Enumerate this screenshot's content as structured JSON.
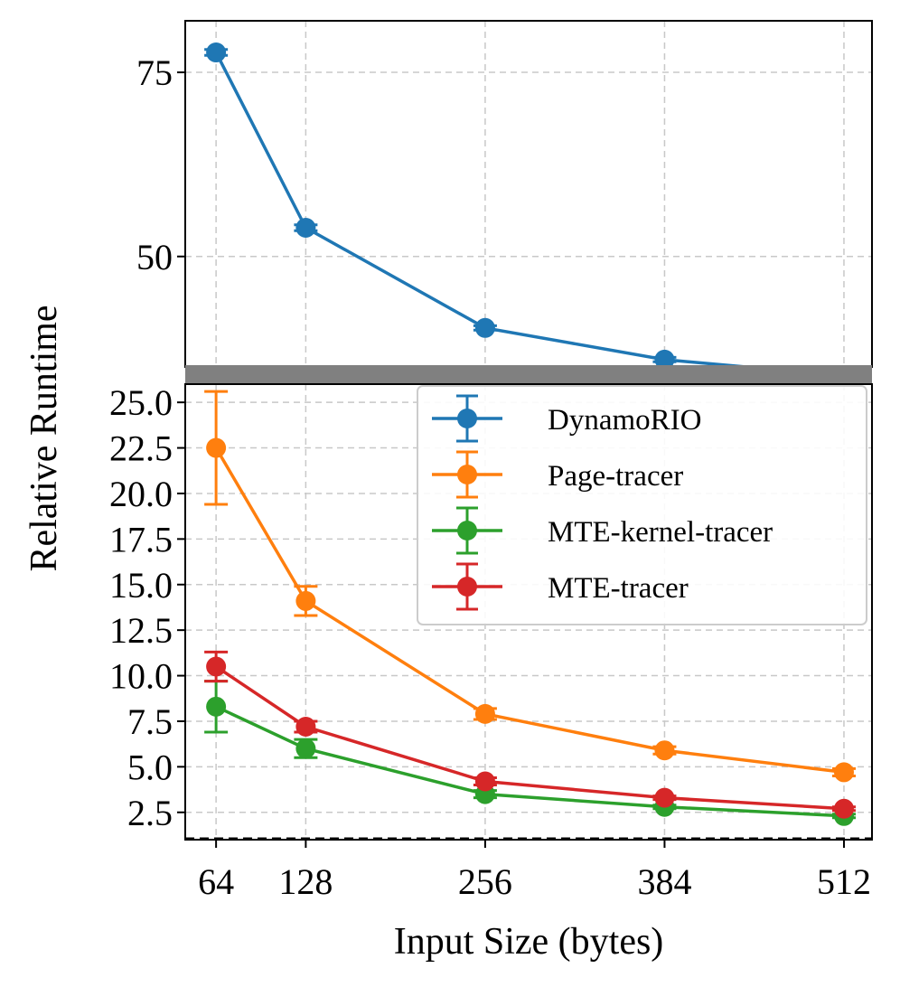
{
  "chart_data": {
    "type": "line",
    "xlabel": "Input Size (bytes)",
    "ylabel": "Relative Runtime",
    "x": [
      64,
      128,
      256,
      384,
      512
    ],
    "xticks": [
      "64",
      "128",
      "256",
      "384",
      "512"
    ],
    "xlim": [
      42,
      532
    ],
    "broken_axis": true,
    "grid": true,
    "legend_position": "upper right",
    "top_panel": {
      "ylim": [
        35,
        82
      ],
      "yticks": [
        "50",
        "75"
      ],
      "series": [
        "DynamoRIO"
      ]
    },
    "bottom_panel": {
      "ylim": [
        1.0,
        26.0
      ],
      "yticks": [
        "2.5",
        "5.0",
        "7.5",
        "10.0",
        "12.5",
        "15.0",
        "17.5",
        "20.0",
        "22.5",
        "25.0"
      ],
      "series": [
        "Page-tracer",
        "MTE-kernel-tracer",
        "MTE-tracer"
      ]
    },
    "series": [
      {
        "name": "DynamoRIO",
        "color": "#1f77b4",
        "values": [
          77.7,
          53.9,
          40.3,
          36.0,
          33.8
        ],
        "err": [
          0.4,
          0.4,
          0.3,
          0.3,
          0.3
        ]
      },
      {
        "name": "Page-tracer",
        "color": "#ff7f0e",
        "values": [
          22.5,
          14.1,
          7.9,
          5.9,
          4.7
        ],
        "err": [
          3.1,
          0.8,
          0.3,
          0.2,
          0.2
        ]
      },
      {
        "name": "MTE-kernel-tracer",
        "color": "#2ca02c",
        "values": [
          8.3,
          6.0,
          3.5,
          2.8,
          2.3
        ],
        "err": [
          1.4,
          0.5,
          0.2,
          0.1,
          0.1
        ]
      },
      {
        "name": "MTE-tracer",
        "color": "#d62728",
        "values": [
          10.5,
          7.2,
          4.2,
          3.3,
          2.7
        ],
        "err": [
          0.8,
          0.3,
          0.2,
          0.1,
          0.1
        ]
      }
    ]
  }
}
